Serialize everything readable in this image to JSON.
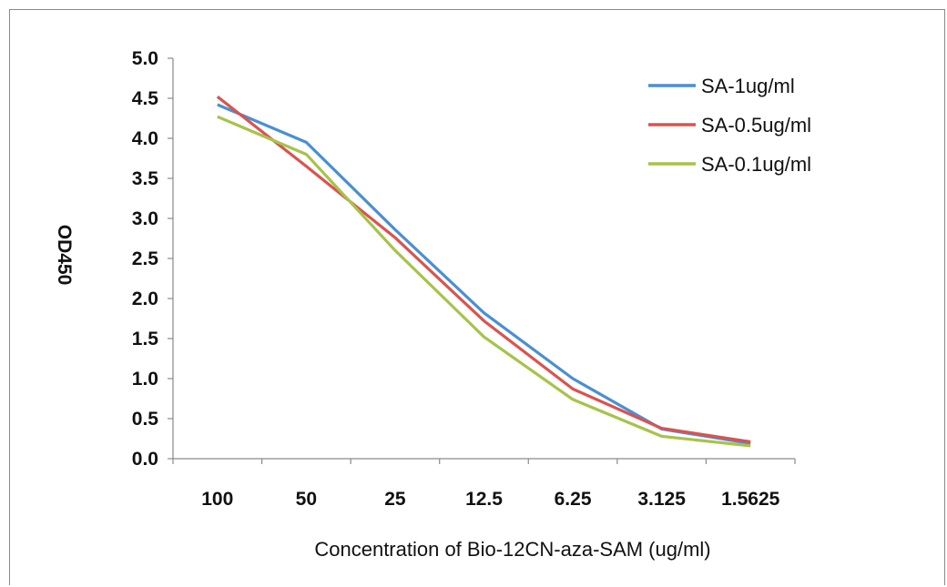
{
  "chart_data": {
    "type": "line",
    "title": "",
    "xlabel": "Concentration of Bio-12CN-aza-SAM (ug/ml)",
    "ylabel": "OD450",
    "categories": [
      "100",
      "50",
      "25",
      "12.5",
      "6.25",
      "3.125",
      "1.5625"
    ],
    "ylim": [
      0,
      5
    ],
    "yticks": [
      "0.0",
      "0.5",
      "1.0",
      "1.5",
      "2.0",
      "2.5",
      "3.0",
      "3.5",
      "4.0",
      "4.5",
      "5.0"
    ],
    "grid": false,
    "legend_position": "top-right",
    "series": [
      {
        "name": "SA-1ug/ml",
        "color": "#4a8fd4",
        "values": [
          4.42,
          3.95,
          2.86,
          1.82,
          1.0,
          0.37,
          0.19
        ]
      },
      {
        "name": "SA-0.5ug/ml",
        "color": "#d9534f",
        "values": [
          4.52,
          3.65,
          2.76,
          1.72,
          0.87,
          0.38,
          0.21
        ]
      },
      {
        "name": "SA-0.1ug/ml",
        "color": "#a6c34a",
        "values": [
          4.27,
          3.8,
          2.6,
          1.52,
          0.74,
          0.28,
          0.16
        ]
      }
    ]
  }
}
